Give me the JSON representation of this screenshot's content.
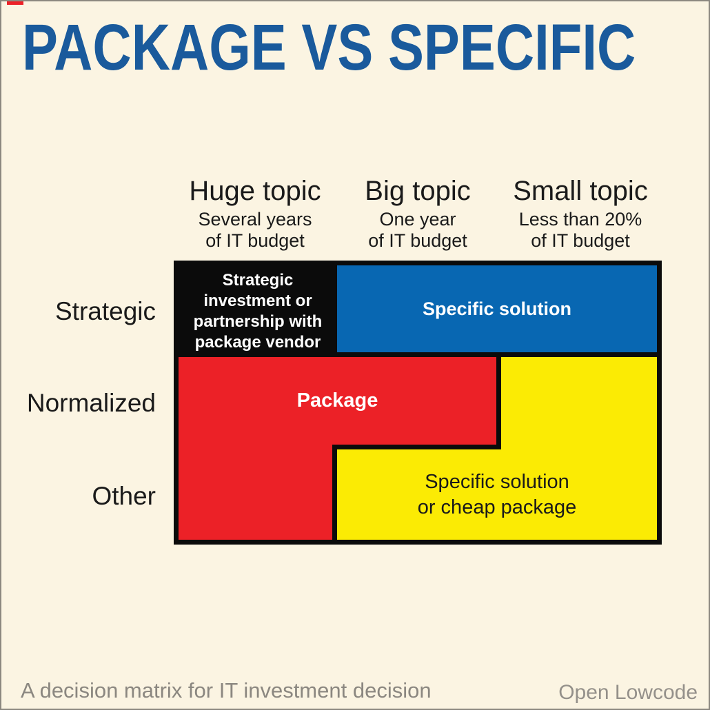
{
  "page": {
    "background_color": "#FBF4E2",
    "border_color": "#8C8880"
  },
  "title": {
    "text": "PACKAGE VS SPECIFIC",
    "color": "#1A5A9C"
  },
  "columns": [
    {
      "label": "Huge topic",
      "sub_line1": "Several years",
      "sub_line2": "of IT budget"
    },
    {
      "label": "Big topic",
      "sub_line1": "One  year",
      "sub_line2": "of IT budget"
    },
    {
      "label": "Small topic",
      "sub_line1": "Less than 20%",
      "sub_line2": "of IT budget"
    }
  ],
  "rows": [
    {
      "label": "Strategic"
    },
    {
      "label": "Normalized"
    },
    {
      "label": "Other"
    }
  ],
  "cells": {
    "strategic_package": {
      "lines": [
        "Strategic",
        "investment  or",
        "partnership with",
        "package vendor"
      ],
      "bg": "#0B0B0B",
      "text_color": "#FFFFFF"
    },
    "strategic_specific": {
      "label": "Specific solution",
      "bg": "#0867B2",
      "text_color": "#FFFFFF"
    },
    "package": {
      "label": "Package",
      "bg": "#EC2127",
      "text_color": "#FFFFFF"
    },
    "specific_or_cheap": {
      "line1": "Specific solution",
      "line2": "or cheap package",
      "bg": "#FBEB04",
      "text_color": "#1A1A1A"
    }
  },
  "footer": {
    "caption": "A decision matrix for IT investment decision",
    "brand": "Open Lowcode",
    "color": "#8B8780"
  }
}
